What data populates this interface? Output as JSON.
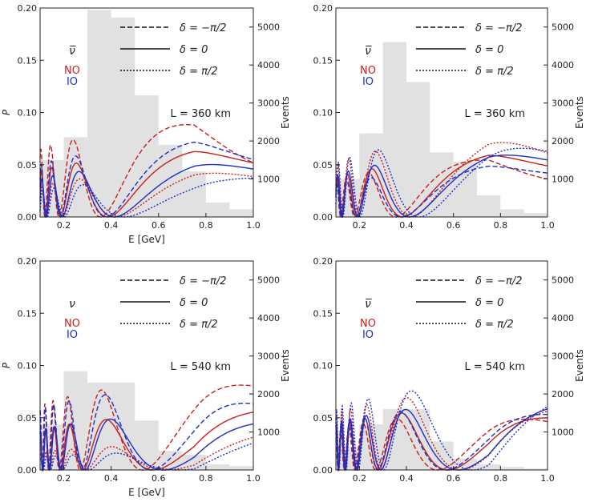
{
  "chart_data": [
    {
      "type": "line",
      "panel": "top-left",
      "xlabel": "E [GeV]",
      "ylabel": "P",
      "y2label": "Events",
      "xlim": [
        0.1,
        1.0
      ],
      "ylim": [
        0,
        0.2
      ],
      "y2lim": [
        0,
        5500
      ],
      "xticks": [
        "0.2",
        "0.4",
        "0.6",
        "0.8",
        "1.0"
      ],
      "yticks": [
        "0.00",
        "0.05",
        "0.10",
        "0.15",
        "0.20"
      ],
      "y2ticks": [
        "1000",
        "2000",
        "3000",
        "4000",
        "5000"
      ],
      "baseline": 360,
      "length_label": "L = 360 km",
      "species": "ν̅",
      "hierarchy_labels": [
        "NO",
        "IO"
      ],
      "legend": [
        "δ = −π/2",
        "δ = 0",
        "δ = π/2"
      ],
      "histogram": {
        "bin_edges": [
          0.1,
          0.2,
          0.3,
          0.4,
          0.5,
          0.6,
          0.7,
          0.8,
          0.9,
          1.0
        ],
        "events": [
          1500,
          2100,
          5450,
          5250,
          3200,
          1900,
          1200,
          380,
          200
        ]
      },
      "series": [
        {
          "name": "NO, δ = −π/2",
          "A": 0.095,
          "first_peak": 0.18,
          "last_peak": 0.67,
          "end": 0.038
        },
        {
          "name": "NO, δ = 0",
          "A": 0.068,
          "first_peak": 0.13,
          "last_peak": 0.72,
          "end": 0.044
        },
        {
          "name": "NO, δ = π/2",
          "A": 0.05,
          "first_peak": 0.03,
          "last_peak": 0.6,
          "end": 0.031
        },
        {
          "name": "IO, δ = −π/2",
          "A": 0.077,
          "first_peak": 0.14,
          "last_peak": 0.76,
          "end": 0.045
        },
        {
          "name": "IO, δ = 0",
          "A": 0.058,
          "first_peak": 0.09,
          "last_peak": 0.68,
          "end": 0.038
        },
        {
          "name": "IO, δ = π/2",
          "A": 0.042,
          "first_peak": 0.03,
          "last_peak": 0.58,
          "end": 0.035
        }
      ]
    },
    {
      "type": "line",
      "panel": "top-right",
      "xlabel": "",
      "ylabel": "",
      "y2label": "Events",
      "xlim": [
        0.1,
        1.0
      ],
      "ylim": [
        0,
        0.2
      ],
      "y2lim": [
        0,
        5500
      ],
      "xticks": [
        "0.2",
        "0.4",
        "0.6",
        "0.8",
        "1.0"
      ],
      "yticks": [
        "0.00",
        "0.05",
        "0.10",
        "0.15",
        "0.20"
      ],
      "y2ticks": [
        "1000",
        "2000",
        "3000",
        "4000",
        "5000"
      ],
      "baseline": 360,
      "length_label": "L = 360 km",
      "species": "ν̅",
      "hierarchy_labels": [
        "NO",
        "IO"
      ],
      "legend": [
        "δ = −π/2",
        "δ = 0",
        "δ = π/2"
      ],
      "histogram": {
        "bin_edges": [
          0.1,
          0.2,
          0.3,
          0.4,
          0.5,
          0.6,
          0.7,
          0.8,
          0.9,
          1.0
        ],
        "events": [
          1000,
          2200,
          4600,
          3550,
          1700,
          1450,
          570,
          200,
          100
        ]
      },
      "series": [
        {
          "name": "NO, δ = −π/2",
          "A": 0.06,
          "first_peak": 0.01,
          "last_peak": 0.5,
          "end": 0.03
        },
        {
          "name": "NO, δ = 0",
          "A": 0.065,
          "first_peak": 0.01,
          "last_peak": 0.6,
          "end": 0.041
        },
        {
          "name": "NO, δ = π/2",
          "A": 0.087,
          "first_peak": 0.02,
          "last_peak": 0.62,
          "end": 0.044
        },
        {
          "name": "IO, δ = −π/2",
          "A": 0.053,
          "first_peak": 0.01,
          "last_peak": 0.53,
          "end": 0.038
        },
        {
          "name": "IO, δ = 0",
          "A": 0.069,
          "first_peak": 0.01,
          "last_peak": 0.6,
          "end": 0.045
        },
        {
          "name": "IO, δ = π/2",
          "A": 0.088,
          "first_peak": 0.02,
          "last_peak": 0.66,
          "end": 0.048
        }
      ]
    },
    {
      "type": "line",
      "panel": "bottom-left",
      "xlabel": "E [GeV]",
      "ylabel": "P",
      "y2label": "Events",
      "xlim": [
        0.1,
        1.0
      ],
      "ylim": [
        0,
        0.2
      ],
      "y2lim": [
        0,
        5500
      ],
      "xticks": [
        "0.2",
        "0.4",
        "0.6",
        "0.8",
        "1.0"
      ],
      "yticks": [
        "0.00",
        "0.05",
        "0.10",
        "0.15",
        "0.20"
      ],
      "y2ticks": [
        "1000",
        "2000",
        "3000",
        "4000",
        "5000"
      ],
      "baseline": 540,
      "length_label": "L = 540 km",
      "species": "ν",
      "hierarchy_labels": [
        "NO",
        "IO"
      ],
      "legend": [
        "δ = −π/2",
        "δ = 0",
        "δ = π/2"
      ],
      "histogram": {
        "bin_edges": [
          0.1,
          0.2,
          0.3,
          0.4,
          0.5,
          0.6,
          0.7,
          0.8,
          0.9,
          1.0
        ],
        "events": [
          1200,
          2600,
          2300,
          2300,
          1300,
          500,
          400,
          150,
          100
        ]
      },
      "series": [
        {
          "name": "NO, δ = −π/2",
          "A": 0.095,
          "first_peak": 0.13,
          "last_peak": 0.72,
          "end": 0.071
        },
        {
          "name": "NO, δ = 0",
          "A": 0.06,
          "first_peak": 0.08,
          "last_peak": 0.57,
          "end": 0.056
        },
        {
          "name": "NO, δ = π/2",
          "A": 0.028,
          "first_peak": 0.03,
          "last_peak": 0.47,
          "end": 0.039
        },
        {
          "name": "IO, δ = −π/2",
          "A": 0.088,
          "first_peak": 0.12,
          "last_peak": 0.58,
          "end": 0.051
        },
        {
          "name": "IO, δ = 0",
          "A": 0.06,
          "first_peak": 0.08,
          "last_peak": 0.55,
          "end": 0.043
        },
        {
          "name": "IO, δ = π/2",
          "A": 0.02,
          "first_peak": 0.03,
          "last_peak": 0.42,
          "end": 0.036
        }
      ]
    },
    {
      "type": "line",
      "panel": "bottom-right",
      "xlabel": "",
      "ylabel": "",
      "y2label": "Events",
      "xlim": [
        0.1,
        1.0
      ],
      "ylim": [
        0,
        0.2
      ],
      "y2lim": [
        0,
        5500
      ],
      "xticks": [
        "0.2",
        "0.4",
        "0.6",
        "0.8",
        "1.0"
      ],
      "yticks": [
        "0.00",
        "0.05",
        "0.10",
        "0.15",
        "0.20"
      ],
      "y2ticks": [
        "1000",
        "2000",
        "3000",
        "4000",
        "5000"
      ],
      "baseline": 540,
      "length_label": "L = 540 km",
      "species": "ν̅",
      "hierarchy_labels": [
        "NO",
        "IO"
      ],
      "legend": [
        "δ = −π/2",
        "δ = 0",
        "δ = π/2"
      ],
      "histogram": {
        "bin_edges": [
          0.1,
          0.2,
          0.3,
          0.4,
          0.5,
          0.6,
          0.7,
          0.8,
          0.9,
          1.0
        ],
        "events": [
          600,
          1200,
          1600,
          1600,
          750,
          300,
          150,
          80,
          40
        ]
      },
      "series": [
        {
          "name": "NO, δ = −π/2",
          "A": 0.062,
          "first_peak": 0.08,
          "last_peak": 0.65,
          "end": 0.036
        },
        {
          "name": "NO, δ = 0",
          "A": 0.068,
          "first_peak": 0.08,
          "last_peak": 0.62,
          "end": 0.042
        },
        {
          "name": "NO, δ = π/2",
          "A": 0.085,
          "first_peak": 0.09,
          "last_peak": 0.62,
          "end": 0.053
        },
        {
          "name": "IO, δ = −π/2",
          "A": 0.07,
          "first_peak": 0.08,
          "last_peak": 0.68,
          "end": 0.045
        },
        {
          "name": "IO, δ = 0",
          "A": 0.072,
          "first_peak": 0.08,
          "last_peak": 0.74,
          "end": 0.061
        },
        {
          "name": "IO, δ = π/2",
          "A": 0.092,
          "first_peak": 0.1,
          "last_peak": 0.66,
          "end": 0.069
        }
      ]
    }
  ],
  "colors": {
    "no": "#c81e1e",
    "io": "#1b2fc4",
    "legend_line": "#111111",
    "histogram": "#e1e1e1",
    "axis": "#222222"
  },
  "icons": [
    "dashed-line-icon",
    "solid-line-icon",
    "dotted-line-icon"
  ]
}
